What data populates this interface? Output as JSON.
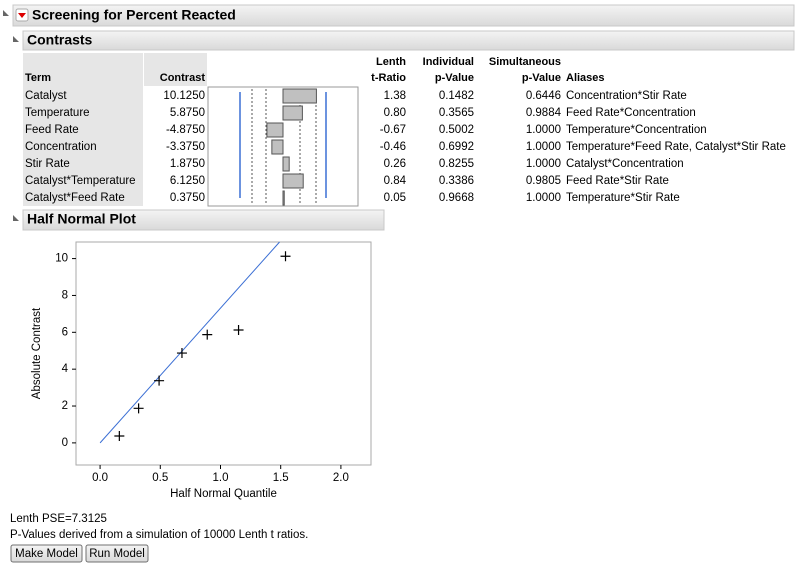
{
  "header": {
    "title": "Screening for Percent Reacted"
  },
  "contrasts": {
    "title": "Contrasts",
    "columns": [
      [
        "Term"
      ],
      [
        "Contrast"
      ],
      [
        "Lenth",
        "t-Ratio"
      ],
      [
        "Individual",
        "p-Value"
      ],
      [
        "Simultaneous",
        "p-Value"
      ],
      [
        "Aliases"
      ]
    ],
    "rows": [
      [
        "Catalyst",
        "10.1250",
        "1.38",
        "0.1482",
        "0.6446",
        "Concentration*Stir Rate"
      ],
      [
        "Temperature",
        "5.8750",
        "0.80",
        "0.3565",
        "0.9884",
        "Feed Rate*Concentration"
      ],
      [
        "Feed Rate",
        "-4.8750",
        "-0.67",
        "0.5002",
        "1.0000",
        "Temperature*Concentration"
      ],
      [
        "Concentration",
        "-3.3750",
        "-0.46",
        "0.6992",
        "1.0000",
        "Temperature*Feed Rate, Catalyst*Stir Rate"
      ],
      [
        "Stir Rate",
        "1.8750",
        "0.26",
        "0.8255",
        "1.0000",
        "Catalyst*Concentration"
      ],
      [
        "Catalyst*Temperature",
        "6.1250",
        "0.84",
        "0.3386",
        "0.9805",
        "Feed Rate*Stir Rate"
      ],
      [
        "Catalyst*Feed Rate",
        "0.3750",
        "0.05",
        "0.9668",
        "1.0000",
        "Temperature*Stir Rate"
      ]
    ]
  },
  "chart_data": {
    "type": "scatter",
    "title": "Half Normal Plot",
    "xlabel": "Half Normal Quantile",
    "ylabel": "Absolute Contrast",
    "x": [
      0.16,
      0.32,
      0.49,
      0.68,
      0.89,
      1.15,
      1.54
    ],
    "values": [
      0.375,
      1.875,
      3.375,
      4.875,
      5.875,
      6.125,
      10.125
    ],
    "xlim": [
      -0.2,
      2.25
    ],
    "ylim": [
      -1.2,
      10.9
    ],
    "xticks": [
      {
        "value": 0,
        "label": "0.0"
      },
      0.5,
      {
        "value": 1,
        "label": "1.0"
      },
      1.5,
      {
        "value": 2,
        "label": "2.0"
      }
    ],
    "yticks": [
      0,
      2,
      4,
      6,
      8,
      10
    ],
    "color": "#000000",
    "line_color": "#3b6fd4"
  },
  "footer": {
    "pse_label": "Lenth PSE=",
    "pse": 7.3125,
    "note": "P-Values derived from a simulation of 10000 Lenth t ratios.",
    "buttons": [
      "Make Model",
      "Run Model"
    ]
  }
}
